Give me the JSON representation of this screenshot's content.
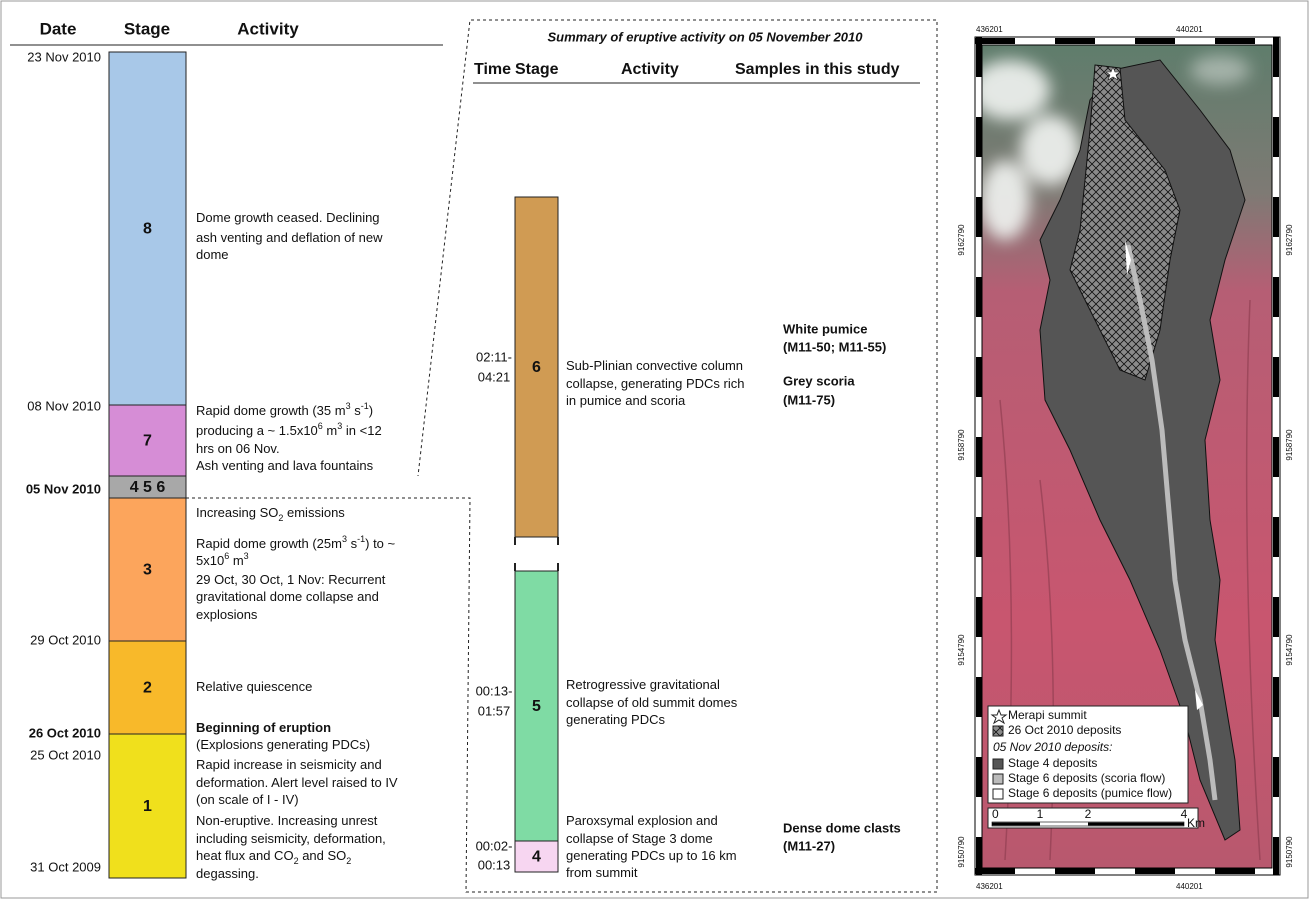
{
  "timeline": {
    "headers": {
      "date": "Date",
      "stage": "Stage",
      "activity": "Activity"
    },
    "dates": [
      "23 Nov 2010",
      "08 Nov 2010",
      "05 Nov 2010",
      "29 Oct 2010",
      "26 Oct 2010",
      "25 Oct 2010",
      "31 Oct 2009"
    ],
    "stages": [
      {
        "label": "8",
        "activity": [
          [
            "Dome growth ceased. Declining"
          ],
          [
            "ash venting and deflation of new"
          ],
          [
            "dome"
          ]
        ]
      },
      {
        "label": "7",
        "activity": [
          [
            "Rapid dome growth (35 m",
            {
              "sup": "3"
            },
            " s",
            {
              "sup": "-1"
            },
            ")"
          ],
          [
            "producing a ~ 1.5x10",
            {
              "sup": "6"
            },
            " m",
            {
              "sup": "3"
            },
            " in <12"
          ],
          [
            "hrs on 06 Nov."
          ],
          [
            "Ash venting and lava fountains"
          ]
        ]
      },
      {
        "label": "4 5 6",
        "activity": []
      },
      {
        "label": "3",
        "activity": [
          [
            "Increasing SO",
            {
              "sub": "2"
            },
            " emissions"
          ],
          [
            "Rapid dome growth (25m",
            {
              "sup": "3"
            },
            " s",
            {
              "sup": "-1"
            },
            ") to ~"
          ],
          [
            "5x10",
            {
              "sup": "6"
            },
            " m",
            {
              "sup": "3"
            }
          ],
          [
            "29 Oct, 30 Oct, 1 Nov: Recurrent"
          ],
          [
            "gravitational dome collapse and"
          ],
          [
            "explosions"
          ]
        ]
      },
      {
        "label": "2",
        "activity": [
          [
            "Relative quiescence"
          ]
        ]
      },
      {
        "label": "1",
        "activity": [
          [
            {
              "strong": "Beginning of eruption"
            }
          ],
          [
            "(Explosions generating PDCs)"
          ],
          [
            "Rapid increase in seismicity and"
          ],
          [
            "deformation. Alert level raised to IV"
          ],
          [
            "(on scale of I - IV)"
          ],
          [
            "Non-eruptive. Increasing unrest"
          ],
          [
            "including seismicity, deformation,"
          ],
          [
            "heat flux and CO",
            {
              "sub": "2"
            },
            " and SO",
            {
              "sub": "2"
            }
          ],
          [
            "degassing."
          ]
        ]
      }
    ]
  },
  "summary": {
    "title": "Summary of eruptive activity on 05 November 2010",
    "headers": {
      "time": "Time",
      "stage": "Stage",
      "activity": "Activity",
      "samples": "Samples in this study"
    },
    "stages": [
      {
        "label": "6",
        "time": [
          "02:11-",
          "04:21"
        ],
        "activity": [
          [
            "Sub-Plinian convective column"
          ],
          [
            "collapse, generating PDCs rich"
          ],
          [
            "in pumice and scoria"
          ]
        ],
        "samples": [
          "White pumice",
          "(M11-50; M11-55)",
          "Grey scoria",
          "(M11-75)"
        ]
      },
      {
        "label": "5",
        "time": [
          "00:13-",
          "01:57"
        ],
        "activity": [
          [
            "Retrogressive gravitational"
          ],
          [
            "collapse of old summit domes"
          ],
          [
            "generating PDCs"
          ]
        ],
        "samples": []
      },
      {
        "label": "4",
        "time": [
          "00:02-",
          "00:13"
        ],
        "activity": [
          [
            "Paroxsymal explosion and"
          ],
          [
            "collapse of Stage 3 dome"
          ],
          [
            "generating PDCs up to 16 km"
          ],
          [
            "from summit"
          ]
        ],
        "samples": [
          "Dense dome clasts",
          "(M11-27)"
        ]
      }
    ]
  },
  "map": {
    "top_ticks": [
      "436201",
      "440201"
    ],
    "bottom_ticks": [
      "436201",
      "440201"
    ],
    "left_ticks": [
      "9162790",
      "9158790",
      "9154790",
      "9150790"
    ],
    "right_ticks": [
      "9162790",
      "9158790",
      "9154790",
      "9150790"
    ],
    "legend": {
      "items": [
        "Merapi summit",
        "26 Oct 2010 deposits"
      ],
      "subtitle": "05 Nov 2010 deposits:",
      "stage_items": [
        "Stage 4 deposits",
        "Stage 6 deposits (scoria flow)",
        "Stage 6 deposits (pumice flow)"
      ]
    },
    "scale": {
      "labels": [
        "0",
        "1",
        "2",
        "4"
      ],
      "unit": "Km"
    }
  }
}
